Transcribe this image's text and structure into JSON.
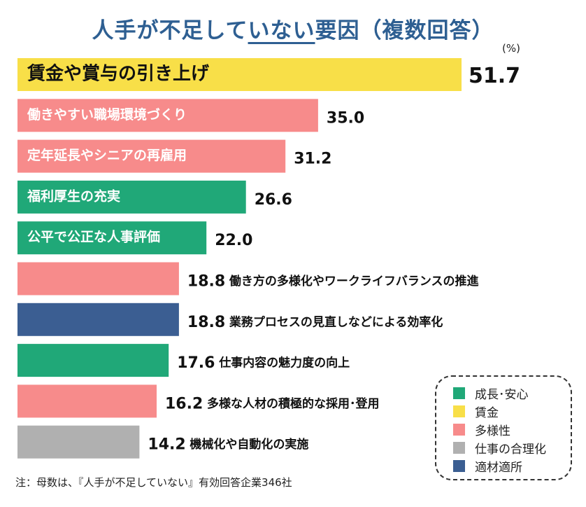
{
  "title": {
    "before": "人手が不足して",
    "underlined": "いない",
    "after": "要因（複数回答）"
  },
  "unit": "(%)",
  "note": "注：母数は、『人手が不足していない』有効回答企業346社",
  "colors": {
    "growth": "#20a878",
    "wage": "#f8df48",
    "diversity": "#f78b8b",
    "rationalization": "#b0b0b0",
    "placement": "#3b5e92"
  },
  "legend": [
    {
      "label": "成長･安心",
      "key": "growth"
    },
    {
      "label": "賃金",
      "key": "wage"
    },
    {
      "label": "多様性",
      "key": "diversity"
    },
    {
      "label": "仕事の合理化",
      "key": "rationalization"
    },
    {
      "label": "適材適所",
      "key": "placement"
    }
  ],
  "chart_data": {
    "type": "bar",
    "orientation": "horizontal",
    "categories": [
      "賃金や賞与の引き上げ",
      "働きやすい職場環境づくり",
      "定年延長やシニアの再雇用",
      "福利厚生の充実",
      "公平で公正な人事評価",
      "働き方の多様化やワークライフバランスの推進",
      "業務プロセスの見直しなどによる効率化",
      "仕事内容の魅力度の向上",
      "多様な人材の積極的な採用･登用",
      "機械化や自動化の実施"
    ],
    "values": [
      51.7,
      35.0,
      31.2,
      26.6,
      22.0,
      18.8,
      18.8,
      17.6,
      16.2,
      14.2
    ],
    "value_labels": [
      "51.7",
      "35.0",
      "31.2",
      "26.6",
      "22.0",
      "18.8",
      "18.8",
      "17.6",
      "16.2",
      "14.2"
    ],
    "groups": [
      "wage",
      "diversity",
      "diversity",
      "growth",
      "growth",
      "diversity",
      "placement",
      "growth",
      "diversity",
      "rationalization"
    ],
    "label_inside_bar": [
      true,
      true,
      true,
      true,
      true,
      false,
      false,
      false,
      false,
      false
    ],
    "legend_position": "bottom-right"
  }
}
